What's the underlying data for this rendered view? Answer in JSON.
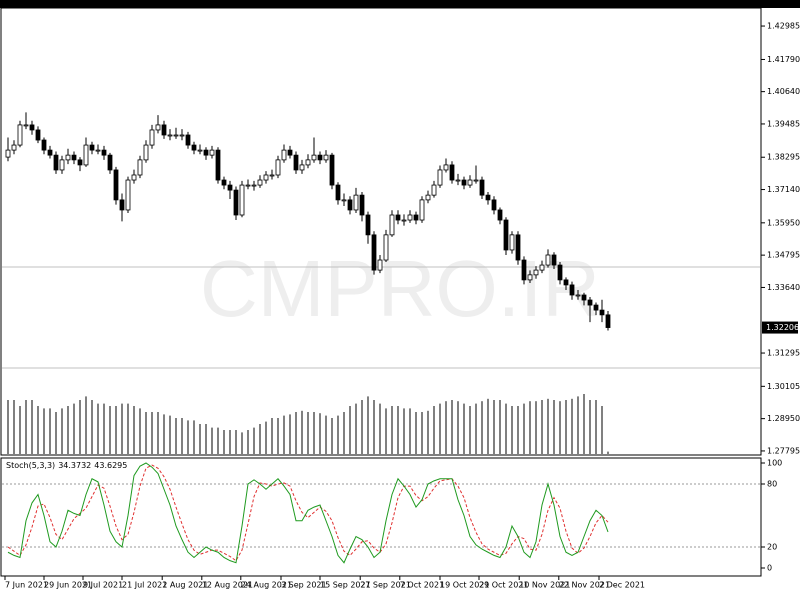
{
  "chart_data": {
    "type": "candlestick",
    "watermark": "CMPRO.IR",
    "open": [
      1.383,
      1.3855,
      1.3873,
      1.3945,
      1.3945,
      1.3927,
      1.3891,
      1.3855,
      1.3837,
      1.3784,
      1.382,
      1.3837,
      1.382,
      1.3802,
      1.3873,
      1.3855,
      1.3855,
      1.3837,
      1.3784,
      1.3677,
      1.3641,
      1.3748,
      1.3766,
      1.382,
      1.3873,
      1.3927,
      1.3945,
      1.3909,
      1.3909,
      1.3909,
      1.3909,
      1.3873,
      1.3855,
      1.3855,
      1.3837,
      1.3855,
      1.3748,
      1.373,
      1.3712,
      1.3623,
      1.373,
      1.373,
      1.373,
      1.3748,
      1.3766,
      1.3766,
      1.382,
      1.3855,
      1.3837,
      1.3784,
      1.3802,
      1.382,
      1.3837,
      1.382,
      1.3837,
      1.373,
      1.3677,
      1.3677,
      1.3641,
      1.3694,
      1.3623,
      1.3552,
      1.3426,
      1.3462,
      1.3552,
      1.3623,
      1.3605,
      1.3605,
      1.3623,
      1.3605,
      1.3677,
      1.3694,
      1.373,
      1.3784,
      1.3802,
      1.3748,
      1.3748,
      1.373,
      1.3748,
      1.3748,
      1.3694,
      1.3677,
      1.3641,
      1.3605,
      1.3498,
      1.3552,
      1.3462,
      1.3391,
      1.3409,
      1.3426,
      1.3444,
      1.348,
      1.3444,
      1.3391,
      1.3373,
      1.3337,
      1.3337,
      1.3319,
      1.3301,
      1.3283,
      1.3266
    ],
    "high": [
      1.39,
      1.389,
      1.396,
      1.399,
      1.396,
      1.394,
      1.39,
      1.387,
      1.385,
      1.3835,
      1.386,
      1.385,
      1.383,
      1.39,
      1.3885,
      1.3875,
      1.387,
      1.3845,
      1.3795,
      1.37,
      1.376,
      1.3785,
      1.3835,
      1.389,
      1.3945,
      1.398,
      1.396,
      1.393,
      1.3935,
      1.393,
      1.392,
      1.3885,
      1.3875,
      1.3865,
      1.387,
      1.3865,
      1.376,
      1.3745,
      1.3725,
      1.3745,
      1.375,
      1.3745,
      1.3765,
      1.378,
      1.3785,
      1.3835,
      1.3875,
      1.387,
      1.385,
      1.382,
      1.384,
      1.39,
      1.385,
      1.3855,
      1.3845,
      1.374,
      1.37,
      1.369,
      1.372,
      1.3705,
      1.3635,
      1.3565,
      1.348,
      1.357,
      1.364,
      1.364,
      1.3625,
      1.364,
      1.3635,
      1.369,
      1.371,
      1.3745,
      1.38,
      1.3825,
      1.3815,
      1.377,
      1.376,
      1.3765,
      1.38,
      1.376,
      1.3705,
      1.369,
      1.365,
      1.3615,
      1.3565,
      1.3565,
      1.3475,
      1.3425,
      1.344,
      1.346,
      1.35,
      1.349,
      1.3455,
      1.34,
      1.3385,
      1.3355,
      1.3345,
      1.333,
      1.331,
      1.332,
      1.328
    ],
    "low": [
      1.3815,
      1.384,
      1.3865,
      1.393,
      1.391,
      1.388,
      1.384,
      1.3825,
      1.377,
      1.377,
      1.3805,
      1.3805,
      1.378,
      1.3795,
      1.384,
      1.384,
      1.382,
      1.377,
      1.366,
      1.36,
      1.363,
      1.3735,
      1.3755,
      1.381,
      1.386,
      1.3915,
      1.3895,
      1.389,
      1.3895,
      1.389,
      1.386,
      1.384,
      1.384,
      1.382,
      1.3825,
      1.3735,
      1.3715,
      1.368,
      1.3605,
      1.3615,
      1.3715,
      1.371,
      1.372,
      1.3735,
      1.375,
      1.3755,
      1.381,
      1.3825,
      1.377,
      1.377,
      1.379,
      1.381,
      1.3805,
      1.381,
      1.3715,
      1.366,
      1.3655,
      1.3625,
      1.363,
      1.36,
      1.352,
      1.341,
      1.3415,
      1.3455,
      1.3545,
      1.359,
      1.3585,
      1.3595,
      1.359,
      1.3595,
      1.3665,
      1.3685,
      1.372,
      1.3775,
      1.3735,
      1.373,
      1.3715,
      1.372,
      1.3735,
      1.368,
      1.366,
      1.3625,
      1.359,
      1.348,
      1.3485,
      1.3445,
      1.3375,
      1.338,
      1.3395,
      1.3415,
      1.3435,
      1.343,
      1.3375,
      1.3355,
      1.332,
      1.332,
      1.33,
      1.324,
      1.3265,
      1.324,
      1.321
    ],
    "close": [
      1.3855,
      1.3873,
      1.3945,
      1.3945,
      1.3927,
      1.3891,
      1.3855,
      1.3837,
      1.3784,
      1.382,
      1.3837,
      1.382,
      1.3802,
      1.3873,
      1.3855,
      1.3855,
      1.3837,
      1.3784,
      1.3677,
      1.3641,
      1.3748,
      1.3766,
      1.382,
      1.3873,
      1.3927,
      1.3945,
      1.3909,
      1.3909,
      1.3909,
      1.3909,
      1.3873,
      1.3855,
      1.3855,
      1.3837,
      1.3855,
      1.3748,
      1.373,
      1.3712,
      1.3623,
      1.373,
      1.373,
      1.373,
      1.3748,
      1.3766,
      1.3766,
      1.382,
      1.3855,
      1.3837,
      1.3784,
      1.3802,
      1.382,
      1.3837,
      1.382,
      1.3837,
      1.373,
      1.3677,
      1.3677,
      1.3641,
      1.3694,
      1.3623,
      1.3552,
      1.3426,
      1.3462,
      1.3552,
      1.3623,
      1.3605,
      1.3605,
      1.3623,
      1.3605,
      1.3677,
      1.3694,
      1.373,
      1.3784,
      1.3802,
      1.3748,
      1.3748,
      1.373,
      1.3748,
      1.3748,
      1.3694,
      1.3677,
      1.3641,
      1.3605,
      1.3498,
      1.3552,
      1.3462,
      1.3391,
      1.3409,
      1.3426,
      1.3444,
      1.348,
      1.3444,
      1.3391,
      1.3373,
      1.3337,
      1.3337,
      1.3319,
      1.3301,
      1.3283,
      1.3266,
      1.32206
    ],
    "bull_color": "#ffffff",
    "bear_color": "#000000",
    "ylim": [
      1.2765,
      1.4363
    ],
    "yticks": [
      1.42985,
      {
        "value": 1.4179,
        "label": "1.41790"
      },
      {
        "value": 1.4064,
        "label": "1.40640"
      },
      1.39485,
      1.38295,
      {
        "value": 1.3714,
        "label": "1.37140"
      },
      {
        "value": 1.3595,
        "label": "1.35950"
      },
      1.34795,
      {
        "value": 1.3364,
        "label": "1.33640"
      },
      1.31295,
      1.30105,
      {
        "value": 1.2895,
        "label": "1.28950"
      },
      1.27795
    ],
    "current_price": 1.32206,
    "hlines": [
      1.3437,
      1.3076
    ],
    "xticks": [
      {
        "value": -0.5,
        "label": "7 Jun 2021"
      },
      {
        "value": 6,
        "label": "29 Jun 2021"
      },
      {
        "value": 12.5,
        "label": "9 Jul 2021"
      },
      {
        "value": 19,
        "label": "21 Jul 2021"
      },
      {
        "value": 25.7,
        "label": "2 Aug 2021"
      },
      {
        "value": 32.3,
        "label": "12 Aug 2021"
      },
      {
        "value": 38.8,
        "label": "24 Aug 2021"
      },
      {
        "value": 45.5,
        "label": "3 Sep 2021"
      },
      {
        "value": 52,
        "label": "15 Sep 2021"
      },
      {
        "value": 58.7,
        "label": "27 Sep 2021"
      },
      {
        "value": 65.3,
        "label": "7 Oct 2021"
      },
      {
        "value": 72,
        "label": "19 Oct 2021"
      },
      {
        "value": 78.5,
        "label": "29 Oct 2021"
      },
      {
        "value": 85.2,
        "label": "10 Nov 2021"
      },
      {
        "value": 91.8,
        "label": "22 Nov 2021"
      },
      {
        "value": 98.5,
        "label": "2 Dec 2021"
      }
    ],
    "volume": {
      "color": "#555555",
      "values": [
        45,
        45,
        40,
        45,
        45,
        40,
        38,
        38,
        35,
        38,
        40,
        42,
        45,
        48,
        45,
        42,
        42,
        40,
        40,
        42,
        42,
        40,
        38,
        35,
        35,
        35,
        33,
        32,
        30,
        30,
        28,
        28,
        25,
        25,
        22,
        22,
        20,
        20,
        20,
        18,
        20,
        22,
        25,
        27,
        30,
        30,
        32,
        33,
        35,
        36,
        35,
        35,
        34,
        32,
        30,
        32,
        35,
        40,
        42,
        45,
        48,
        45,
        42,
        38,
        40,
        40,
        38,
        38,
        35,
        35,
        36,
        40,
        42,
        44,
        45,
        44,
        42,
        40,
        42,
        44,
        46,
        45,
        45,
        42,
        40,
        40,
        42,
        44,
        44,
        45,
        46,
        45,
        44,
        45,
        46,
        48,
        50,
        45,
        45,
        40,
        2
      ]
    },
    "stochastic": {
      "name": "Stoch(5,3,3)",
      "ylim": [
        0,
        100
      ],
      "yticks": [
        100,
        80,
        20,
        0
      ],
      "levels": [
        80,
        20
      ],
      "k": {
        "color": "#1f9a1f",
        "values": [
          15,
          12,
          10,
          45,
          62,
          70,
          50,
          25,
          20,
          35,
          55,
          52,
          50,
          70,
          85,
          82,
          60,
          35,
          25,
          20,
          50,
          88,
          97,
          100,
          96,
          90,
          75,
          60,
          40,
          27,
          15,
          10,
          15,
          20,
          17,
          15,
          10,
          7,
          5,
          40,
          80,
          84,
          80,
          75,
          80,
          85,
          78,
          70,
          45,
          45,
          55,
          58,
          60,
          45,
          30,
          12,
          5,
          18,
          30,
          27,
          20,
          10,
          15,
          45,
          70,
          85,
          78,
          70,
          58,
          65,
          80,
          83,
          85,
          85,
          85,
          65,
          50,
          30,
          22,
          18,
          15,
          12,
          10,
          20,
          40,
          30,
          15,
          10,
          25,
          60,
          80,
          60,
          30,
          15,
          12,
          15,
          30,
          45,
          55,
          50,
          34.3732
        ]
      },
      "d": {
        "color": "#e03030",
        "values": [
          20,
          16,
          12,
          22,
          39,
          59,
          61,
          48,
          32,
          27,
          37,
          47,
          52,
          57,
          68,
          79,
          76,
          59,
          40,
          27,
          32,
          53,
          78,
          95,
          98,
          95,
          87,
          75,
          58,
          42,
          27,
          17,
          13,
          15,
          17,
          17,
          14,
          11,
          7,
          17,
          42,
          68,
          81,
          80,
          78,
          80,
          81,
          78,
          64,
          53,
          48,
          53,
          58,
          54,
          45,
          29,
          16,
          12,
          18,
          25,
          26,
          19,
          15,
          23,
          43,
          67,
          78,
          78,
          69,
          64,
          68,
          76,
          83,
          84,
          85,
          78,
          67,
          48,
          34,
          23,
          18,
          15,
          12,
          14,
          23,
          30,
          28,
          18,
          17,
          32,
          55,
          67,
          57,
          35,
          19,
          14,
          19,
          30,
          43,
          50,
          43.6295
        ]
      }
    }
  }
}
